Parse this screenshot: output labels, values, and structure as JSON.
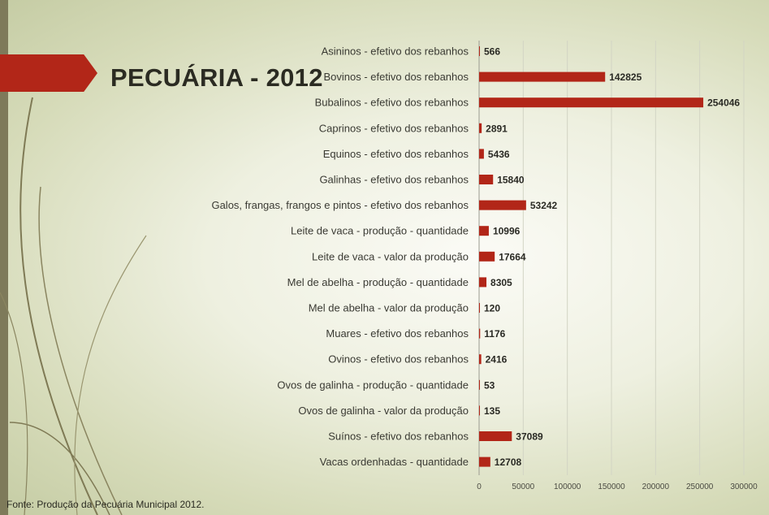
{
  "title": "PECUÁRIA - 2012",
  "source": "Fonte: Produção da Pecuária Municipal  2012.",
  "colors": {
    "bar": "#b22618",
    "accent": "#b22618"
  },
  "chart_data": {
    "type": "bar",
    "orientation": "horizontal",
    "title": "PECUÁRIA - 2012",
    "categories": [
      "Asininos - efetivo dos rebanhos",
      "Bovinos - efetivo dos rebanhos",
      "Bubalinos - efetivo dos rebanhos",
      "Caprinos - efetivo dos rebanhos",
      "Equinos - efetivo dos rebanhos",
      "Galinhas - efetivo dos rebanhos",
      "Galos, frangas, frangos e pintos - efetivo dos rebanhos",
      "Leite de vaca - produção - quantidade",
      "Leite de vaca - valor da produção",
      "Mel de abelha - produção - quantidade",
      "Mel de abelha - valor da produção",
      "Muares - efetivo dos rebanhos",
      "Ovinos - efetivo dos rebanhos",
      "Ovos de galinha - produção - quantidade",
      "Ovos de galinha - valor da produção",
      "Suínos - efetivo dos rebanhos",
      "Vacas ordenhadas - quantidade"
    ],
    "values": [
      566,
      142825,
      254046,
      2891,
      5436,
      15840,
      53242,
      10996,
      17664,
      8305,
      120,
      1176,
      2416,
      53,
      135,
      37089,
      12708
    ],
    "xlim": [
      0,
      300000
    ],
    "xticks": [
      0,
      50000,
      100000,
      150000,
      200000,
      250000,
      300000
    ],
    "grid": true,
    "legend": "none"
  }
}
